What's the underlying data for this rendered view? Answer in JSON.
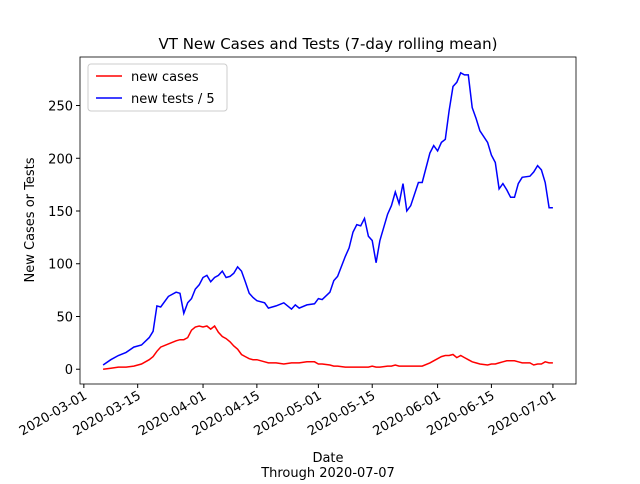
{
  "chart_data": {
    "type": "line",
    "title": "VT New Cases and Tests (7-day rolling mean)",
    "x_label": "Date",
    "x_label_note": "Through 2020-07-07",
    "y_label": "New Cases or Tests",
    "x": [
      "2020-03-06",
      "2020-03-08",
      "2020-03-10",
      "2020-03-12",
      "2020-03-14",
      "2020-03-16",
      "2020-03-18",
      "2020-03-19",
      "2020-03-20",
      "2020-03-21",
      "2020-03-23",
      "2020-03-25",
      "2020-03-26",
      "2020-03-27",
      "2020-03-28",
      "2020-03-29",
      "2020-03-30",
      "2020-03-31",
      "2020-04-01",
      "2020-04-02",
      "2020-04-03",
      "2020-04-04",
      "2020-04-05",
      "2020-04-06",
      "2020-04-07",
      "2020-04-08",
      "2020-04-09",
      "2020-04-10",
      "2020-04-11",
      "2020-04-12",
      "2020-04-13",
      "2020-04-14",
      "2020-04-15",
      "2020-04-17",
      "2020-04-18",
      "2020-04-20",
      "2020-04-22",
      "2020-04-24",
      "2020-04-25",
      "2020-04-26",
      "2020-04-28",
      "2020-04-30",
      "2020-05-01",
      "2020-05-02",
      "2020-05-04",
      "2020-05-05",
      "2020-05-06",
      "2020-05-08",
      "2020-05-09",
      "2020-05-10",
      "2020-05-11",
      "2020-05-12",
      "2020-05-13",
      "2020-05-14",
      "2020-05-15",
      "2020-05-16",
      "2020-05-17",
      "2020-05-19",
      "2020-05-20",
      "2020-05-21",
      "2020-05-22",
      "2020-05-23",
      "2020-05-24",
      "2020-05-25",
      "2020-05-27",
      "2020-05-28",
      "2020-05-30",
      "2020-05-31",
      "2020-06-01",
      "2020-06-02",
      "2020-06-03",
      "2020-06-04",
      "2020-06-05",
      "2020-06-06",
      "2020-06-07",
      "2020-06-08",
      "2020-06-09",
      "2020-06-10",
      "2020-06-11",
      "2020-06-12",
      "2020-06-14",
      "2020-06-15",
      "2020-06-16",
      "2020-06-17",
      "2020-06-18",
      "2020-06-19",
      "2020-06-20",
      "2020-06-21",
      "2020-06-22",
      "2020-06-23",
      "2020-06-25",
      "2020-06-26",
      "2020-06-27",
      "2020-06-28",
      "2020-06-29",
      "2020-06-30",
      "2020-07-01"
    ],
    "series": [
      {
        "name": "new cases",
        "color": "#ff0000",
        "values": [
          0,
          1,
          2,
          2,
          3,
          5,
          9,
          12,
          17,
          21,
          24,
          27,
          28,
          28,
          30,
          37,
          40,
          41,
          40,
          41,
          38,
          41,
          35,
          31,
          29,
          26,
          22,
          19,
          14,
          12,
          10,
          9,
          9,
          7,
          6,
          6,
          5,
          6,
          6,
          6,
          7,
          7,
          5,
          5,
          4,
          3,
          3,
          2,
          2,
          2,
          2,
          2,
          2,
          2,
          3,
          2,
          2,
          3,
          3,
          4,
          3,
          3,
          3,
          3,
          3,
          3,
          6,
          8,
          10,
          12,
          13,
          13,
          14,
          11,
          13,
          11,
          9,
          7,
          6,
          5,
          4,
          5,
          5,
          6,
          7,
          8,
          8,
          8,
          7,
          6,
          6,
          4,
          5,
          5,
          7,
          6,
          6
        ]
      },
      {
        "name": "new tests / 5",
        "color": "#0000ff",
        "values": [
          4,
          9,
          13,
          16,
          21,
          23,
          30,
          36,
          60,
          59,
          69,
          73,
          72,
          53,
          63,
          67,
          76,
          80,
          87,
          89,
          83,
          87,
          89,
          93,
          87,
          88,
          91,
          97,
          93,
          83,
          72,
          68,
          65,
          63,
          58,
          60,
          63,
          57,
          61,
          58,
          61,
          62,
          67,
          66,
          73,
          84,
          88,
          107,
          115,
          130,
          137,
          136,
          143,
          126,
          122,
          101,
          122,
          147,
          155,
          168,
          157,
          176,
          150,
          155,
          177,
          177,
          205,
          212,
          207,
          215,
          218,
          245,
          268,
          272,
          281,
          279,
          279,
          248,
          238,
          226,
          215,
          203,
          196,
          171,
          176,
          170,
          163,
          163,
          176,
          182,
          183,
          187,
          193,
          189,
          177,
          153,
          153
        ]
      }
    ],
    "xlim": [
      "2020-02-29",
      "2020-07-07"
    ],
    "xticks": [
      "2020-03-01",
      "2020-03-15",
      "2020-04-01",
      "2020-04-15",
      "2020-05-01",
      "2020-05-15",
      "2020-06-01",
      "2020-06-15",
      "2020-07-01"
    ],
    "ylim": [
      -14,
      296
    ],
    "yticks": [
      0,
      50,
      100,
      150,
      200,
      250
    ],
    "legend": "upper left"
  }
}
